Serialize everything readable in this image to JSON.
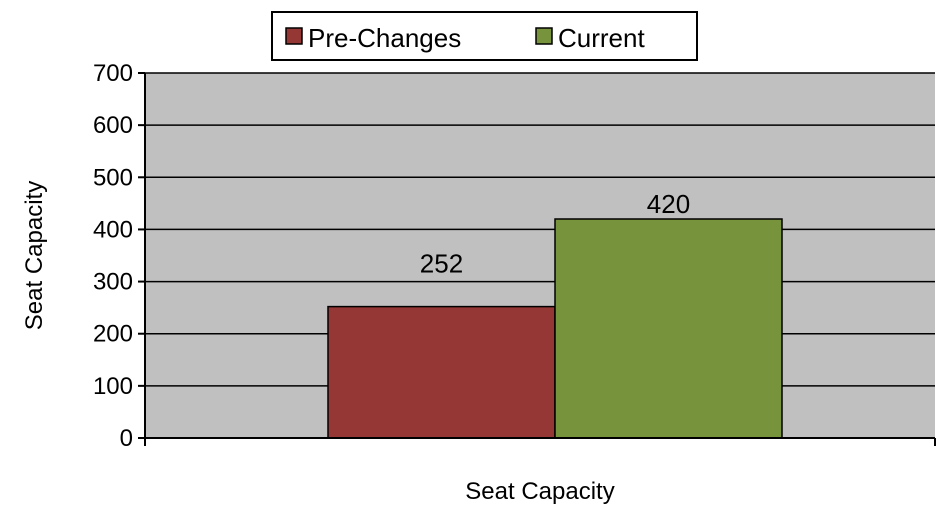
{
  "chart_data": {
    "type": "bar",
    "categories": [
      "Seat Capacity"
    ],
    "series": [
      {
        "name": "Pre-Changes",
        "values": [
          252
        ]
      },
      {
        "name": "Current",
        "values": [
          420
        ]
      }
    ],
    "xlabel": "Seat Capacity",
    "ylabel": "Seat Capacity",
    "ylim": [
      0,
      700
    ],
    "yticks": [
      0,
      100,
      200,
      300,
      400,
      500,
      600,
      700
    ],
    "data_labels": [
      "252",
      "420"
    ],
    "grid": true,
    "legend_position": "top",
    "colors": {
      "Pre-Changes": "#953735",
      "Current": "#77933C",
      "plot_background": "#C0C0C0",
      "gridline": "#000000"
    }
  }
}
